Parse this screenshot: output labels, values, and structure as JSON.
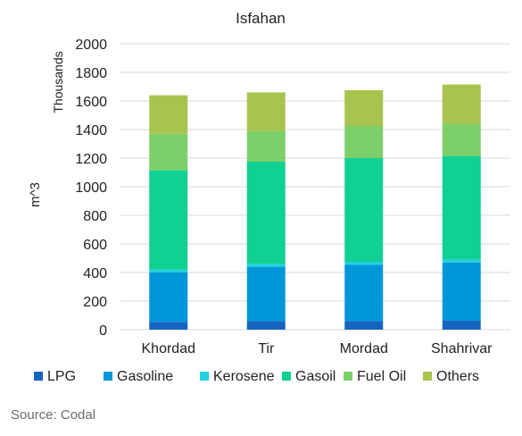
{
  "chart_data": {
    "type": "bar",
    "stacked": true,
    "title": "Isfahan",
    "ylabel": "m^3",
    "yunit_label": "Thousands",
    "xlabel": "",
    "categories": [
      "Khordad",
      "Tir",
      "Mordad",
      "Shahrivar"
    ],
    "ylim": [
      0,
      2000
    ],
    "yticks": [
      0,
      200,
      400,
      600,
      800,
      1000,
      1200,
      1400,
      1600,
      1800,
      2000
    ],
    "grid": true,
    "legend_position": "bottom",
    "series": [
      {
        "name": "LPG",
        "color": "#1565c0",
        "values": [
          55,
          60,
          60,
          65
        ]
      },
      {
        "name": "Gasoline",
        "color": "#0097d9",
        "values": [
          345,
          380,
          395,
          405
        ]
      },
      {
        "name": "Kerosene",
        "color": "#22d0e0",
        "values": [
          20,
          20,
          20,
          20
        ]
      },
      {
        "name": "Gasoil",
        "color": "#10d094",
        "values": [
          695,
          715,
          725,
          725
        ]
      },
      {
        "name": "Fuel Oil",
        "color": "#7dcf6a",
        "values": [
          255,
          215,
          225,
          225
        ]
      },
      {
        "name": "Others",
        "color": "#a8c44e",
        "values": [
          270,
          270,
          250,
          275
        ]
      }
    ]
  },
  "source": "Source: Codal"
}
